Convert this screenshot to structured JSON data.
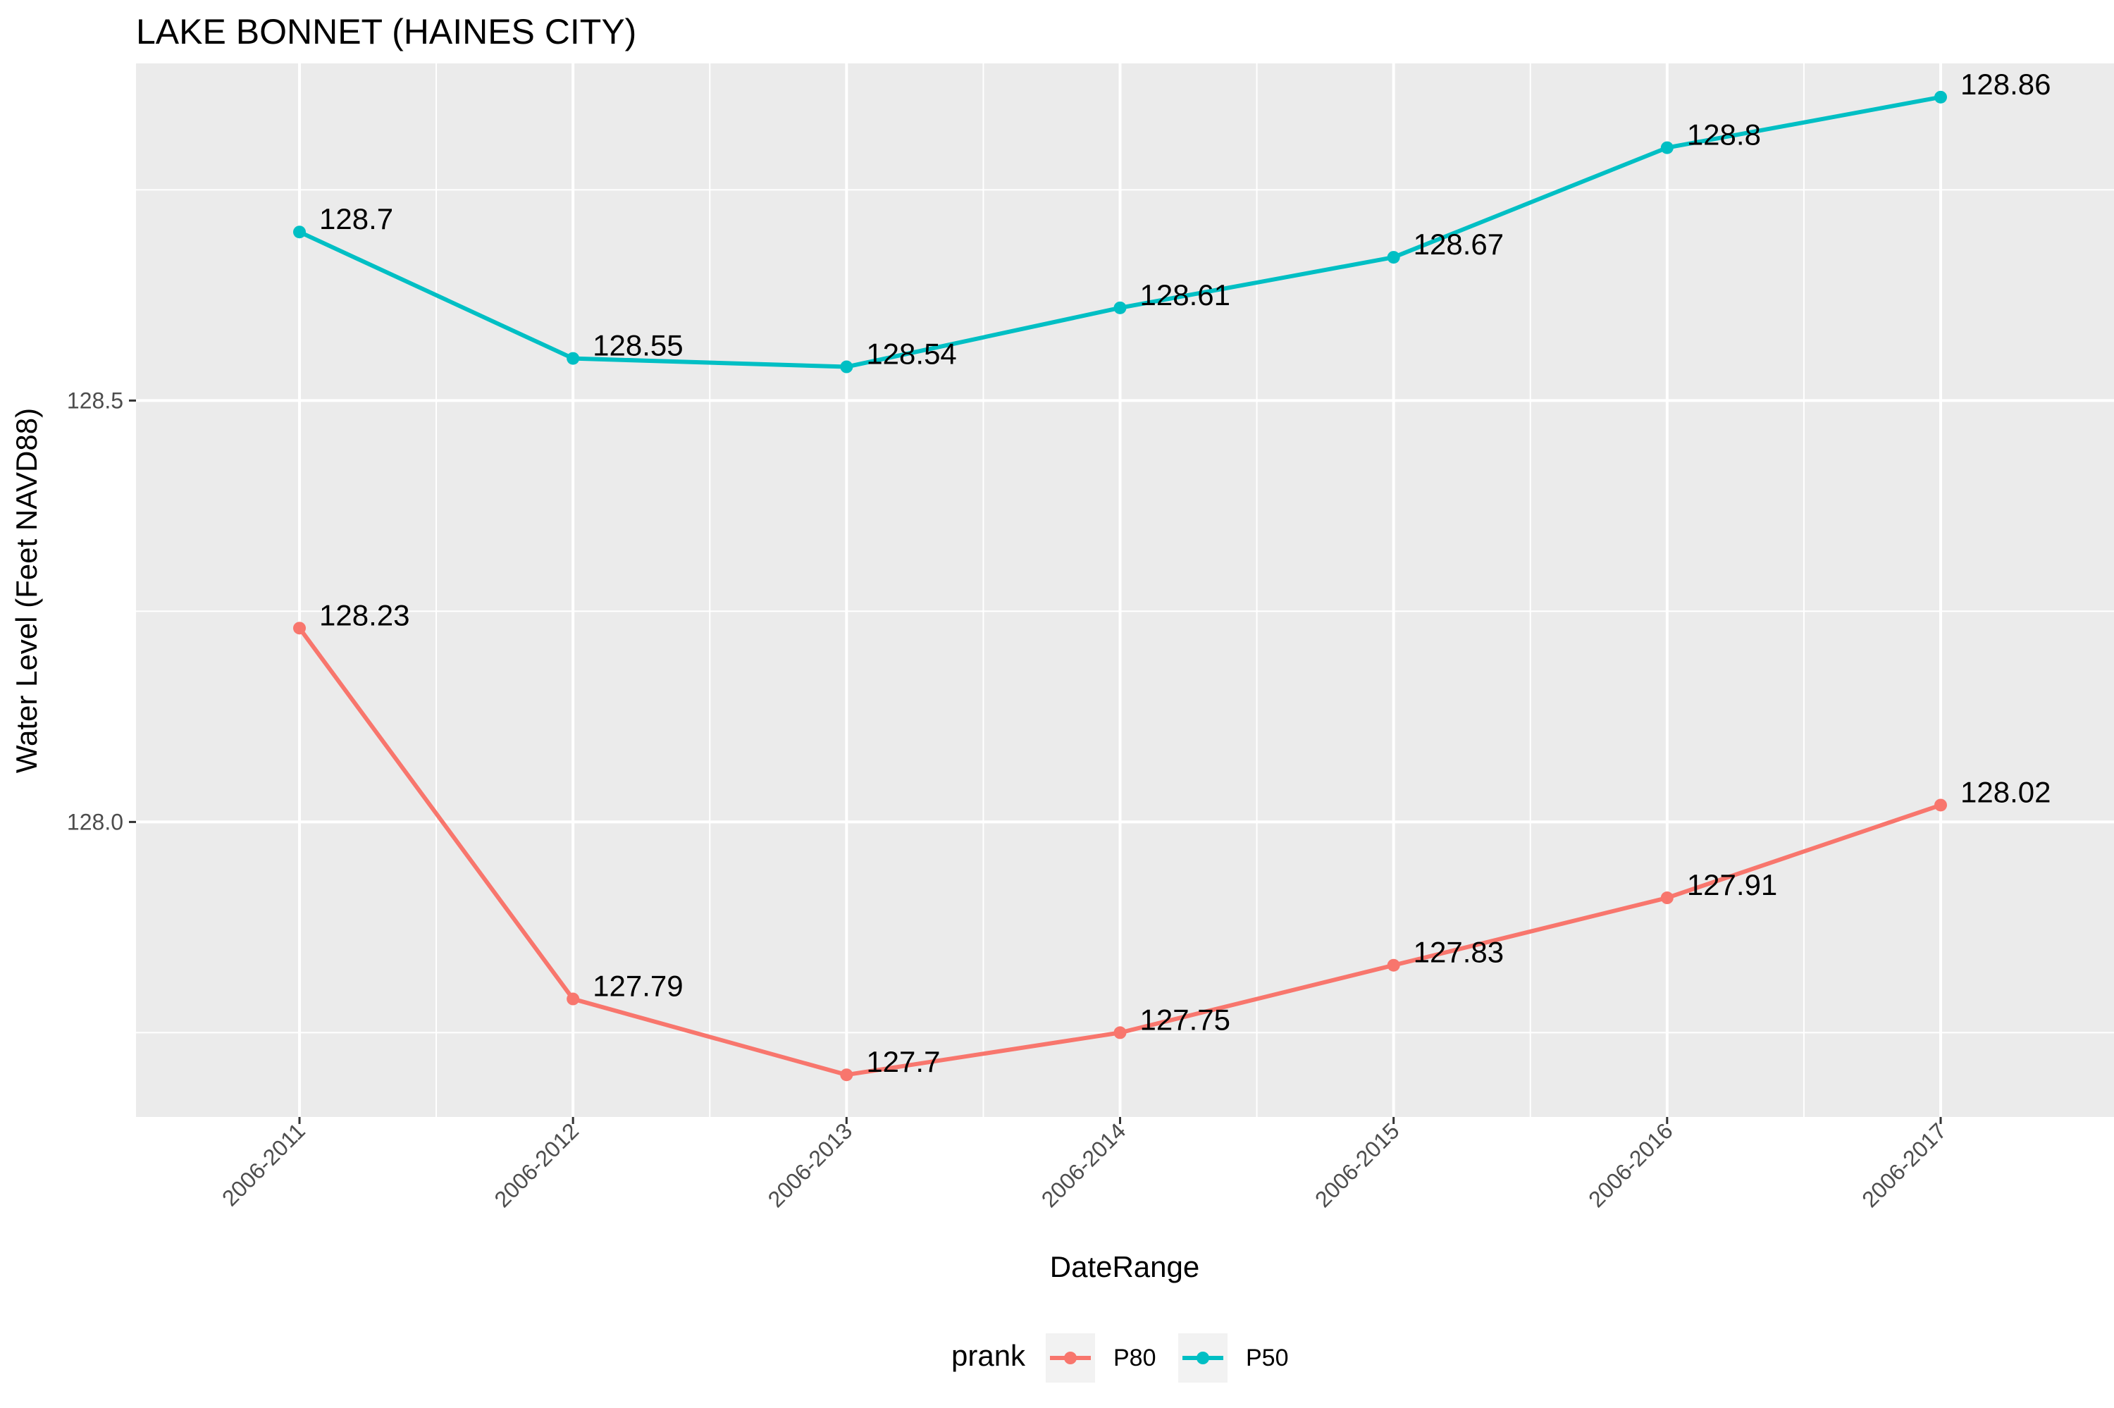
{
  "chart_data": {
    "type": "line",
    "title": "LAKE BONNET (HAINES CITY)",
    "xlabel": "DateRange",
    "ylabel": "Water Level (Feet NAVD88)",
    "categories": [
      "2006-2011",
      "2006-2012",
      "2006-2013",
      "2006-2014",
      "2006-2015",
      "2006-2016",
      "2006-2017"
    ],
    "y_ticks": [
      "128.0",
      "128.5"
    ],
    "ylim": [
      127.65,
      128.9
    ],
    "grid": true,
    "legend": {
      "title": "prank",
      "placement": "bottom"
    },
    "series": [
      {
        "name": "P80",
        "color": "#F8766D",
        "values": [
          128.23,
          127.79,
          127.7,
          127.75,
          127.83,
          127.91,
          128.02
        ],
        "labels": [
          "128.23",
          "127.79",
          "127.7",
          "127.75",
          "127.83",
          "127.91",
          "128.02"
        ]
      },
      {
        "name": "P50",
        "color": "#00BFC4",
        "values": [
          128.7,
          128.55,
          128.54,
          128.61,
          128.67,
          128.8,
          128.86
        ],
        "labels": [
          "128.7",
          "128.55",
          "128.54",
          "128.61",
          "128.67",
          "128.8",
          "128.86"
        ]
      }
    ]
  }
}
